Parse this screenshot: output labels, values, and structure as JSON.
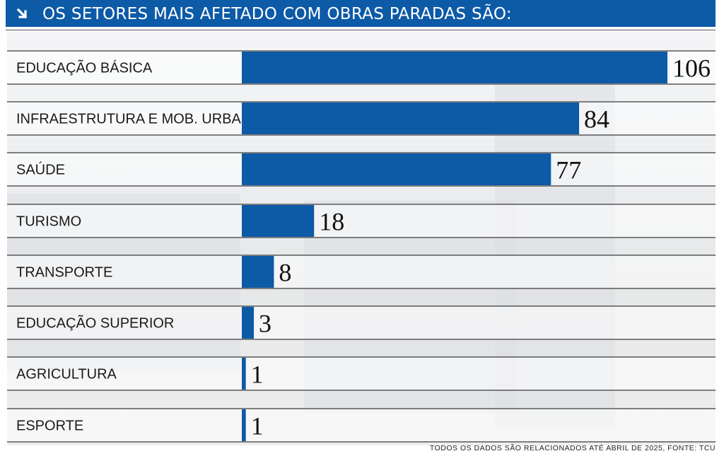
{
  "header": {
    "title": "OS SETORES MAIS AFETADO COM OBRAS PARADAS SÃO:",
    "icon": "arrow-down-right-icon",
    "background_color": "#0d5aa7"
  },
  "chart_data": {
    "type": "bar",
    "orientation": "horizontal",
    "categories": [
      "EDUCAÇÃO BÁSICA",
      "INFRAESTRUTURA E MOB. URBANA",
      "SAÚDE",
      "TURISMO",
      "TRANSPORTE",
      "EDUCAÇÃO SUPERIOR",
      "AGRICULTURA",
      "ESPORTE"
    ],
    "values": [
      106,
      84,
      77,
      18,
      8,
      3,
      1,
      1
    ],
    "value_labels": [
      "106",
      "84",
      "77",
      "18",
      "8",
      "3",
      "1",
      "1"
    ],
    "bar_color": "#0d5aa7",
    "xlim": [
      0,
      106
    ],
    "grid": false,
    "legend": "none"
  },
  "footnote": "TODOS OS DADOS SÃO RELACIONADOS ATÉ ABRIL DE 2025, FONTE: TCU"
}
